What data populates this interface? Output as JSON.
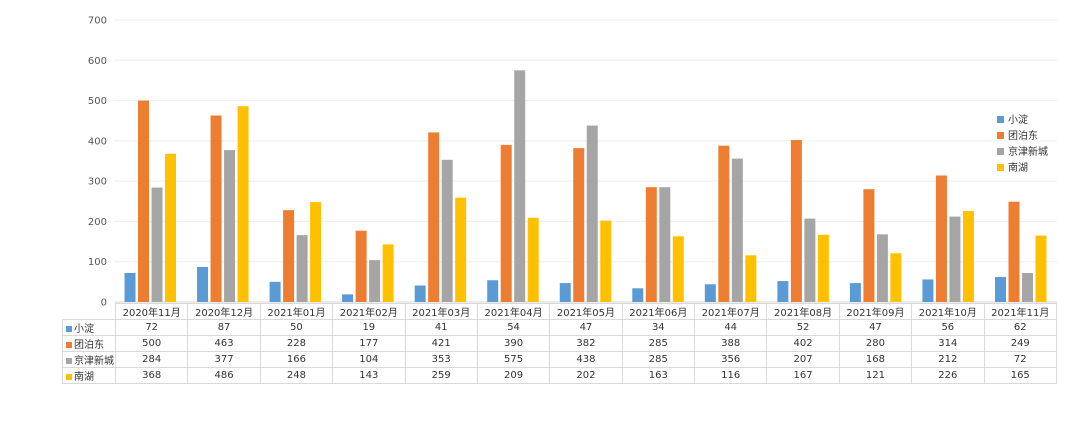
{
  "chart_data": {
    "type": "bar",
    "categories": [
      "2020年11月",
      "2020年12月",
      "2021年01月",
      "2021年02月",
      "2021年03月",
      "2021年04月",
      "2021年05月",
      "2021年06月",
      "2021年07月",
      "2021年08月",
      "2021年09月",
      "2021年10月",
      "2021年11月"
    ],
    "series": [
      {
        "name": "小淀",
        "color": "#5B9BD5",
        "values": [
          72,
          87,
          50,
          19,
          41,
          54,
          47,
          34,
          44,
          52,
          47,
          56,
          62
        ]
      },
      {
        "name": "团泊东",
        "color": "#ED7D31",
        "values": [
          500,
          463,
          228,
          177,
          421,
          390,
          382,
          285,
          388,
          402,
          280,
          314,
          249
        ]
      },
      {
        "name": "京津新城",
        "color": "#A5A5A5",
        "values": [
          284,
          377,
          166,
          104,
          353,
          575,
          438,
          285,
          356,
          207,
          168,
          212,
          72
        ]
      },
      {
        "name": "南湖",
        "color": "#FFC000",
        "values": [
          368,
          486,
          248,
          143,
          259,
          209,
          202,
          163,
          116,
          167,
          121,
          226,
          165
        ]
      }
    ],
    "ylim": [
      0,
      700
    ],
    "yticks": [
      0,
      100,
      200,
      300,
      400,
      500,
      600,
      700
    ],
    "grid": true,
    "legend_position": "right",
    "data_table": true
  }
}
